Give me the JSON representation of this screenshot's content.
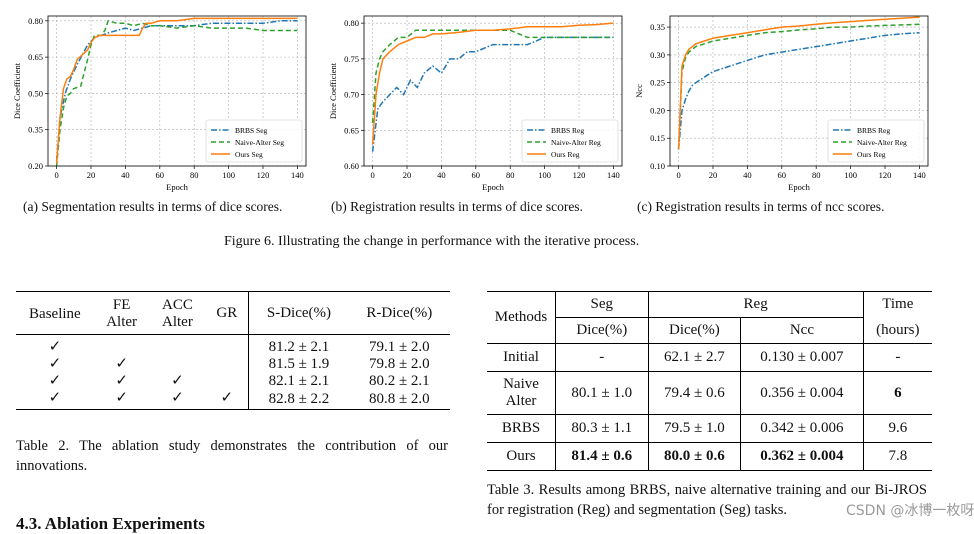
{
  "chart_data": [
    {
      "type": "line",
      "title": "",
      "xlabel": "Epoch",
      "ylabel": "Dice Coefficient",
      "xlim": [
        -5,
        145
      ],
      "ylim": [
        0.2,
        0.82
      ],
      "xticks": [
        0,
        20,
        40,
        60,
        80,
        100,
        120,
        140
      ],
      "yticks": [
        0.2,
        0.35,
        0.5,
        0.65,
        0.8
      ],
      "ytick_labels": [
        "0.20",
        "0.35",
        "0.50",
        "0.65",
        "0.80"
      ],
      "grid": true,
      "legend": "bottom-right",
      "series": [
        {
          "name": "BRBS Seg",
          "style": "dashdot",
          "color": "#1f77b4",
          "x": [
            0,
            2,
            5,
            8,
            12,
            15,
            18,
            22,
            26,
            30,
            35,
            40,
            45,
            50,
            55,
            60,
            70,
            80,
            90,
            100,
            110,
            120,
            130,
            140
          ],
          "y": [
            0.22,
            0.4,
            0.5,
            0.56,
            0.62,
            0.66,
            0.7,
            0.73,
            0.74,
            0.75,
            0.76,
            0.77,
            0.76,
            0.77,
            0.78,
            0.78,
            0.78,
            0.78,
            0.79,
            0.79,
            0.79,
            0.79,
            0.8,
            0.8
          ]
        },
        {
          "name": "Naive-Alter Seg",
          "style": "dashed",
          "color": "#2ca02c",
          "x": [
            0,
            2,
            4,
            6,
            8,
            10,
            14,
            18,
            20,
            22,
            26,
            28,
            30,
            35,
            40,
            45,
            50,
            55,
            60,
            70,
            80,
            90,
            100,
            110,
            120,
            130,
            140
          ],
          "y": [
            0.2,
            0.35,
            0.44,
            0.49,
            0.5,
            0.52,
            0.53,
            0.64,
            0.7,
            0.74,
            0.74,
            0.76,
            0.8,
            0.79,
            0.79,
            0.78,
            0.79,
            0.78,
            0.78,
            0.77,
            0.78,
            0.77,
            0.77,
            0.77,
            0.76,
            0.76,
            0.76
          ]
        },
        {
          "name": "Ours Seg",
          "style": "solid",
          "color": "#ff7f0e",
          "x": [
            0,
            2,
            4,
            6,
            8,
            10,
            12,
            15,
            18,
            20,
            22,
            25,
            28,
            30,
            35,
            40,
            45,
            48,
            50,
            52,
            55,
            60,
            70,
            80,
            90,
            100,
            110,
            120,
            130,
            140
          ],
          "y": [
            0.21,
            0.4,
            0.52,
            0.56,
            0.57,
            0.6,
            0.64,
            0.66,
            0.68,
            0.71,
            0.73,
            0.74,
            0.74,
            0.74,
            0.74,
            0.74,
            0.74,
            0.74,
            0.77,
            0.79,
            0.79,
            0.8,
            0.8,
            0.81,
            0.81,
            0.81,
            0.81,
            0.81,
            0.81,
            0.81
          ]
        }
      ]
    },
    {
      "type": "line",
      "title": "",
      "xlabel": "Epoch",
      "ylabel": "Dice Coefficient",
      "xlim": [
        -5,
        145
      ],
      "ylim": [
        0.6,
        0.81
      ],
      "xticks": [
        0,
        20,
        40,
        60,
        80,
        100,
        120,
        140
      ],
      "yticks": [
        0.6,
        0.65,
        0.7,
        0.75,
        0.8
      ],
      "ytick_labels": [
        "0.60",
        "0.65",
        "0.70",
        "0.75",
        "0.80"
      ],
      "grid": true,
      "legend": "bottom-right",
      "series": [
        {
          "name": "BRBS Reg",
          "style": "dashdot",
          "color": "#1f77b4",
          "x": [
            0,
            3,
            6,
            10,
            14,
            18,
            22,
            26,
            30,
            35,
            40,
            45,
            50,
            55,
            60,
            70,
            80,
            90,
            100,
            110,
            120,
            130,
            140
          ],
          "y": [
            0.62,
            0.68,
            0.69,
            0.7,
            0.71,
            0.7,
            0.72,
            0.71,
            0.73,
            0.74,
            0.73,
            0.75,
            0.75,
            0.76,
            0.76,
            0.77,
            0.77,
            0.77,
            0.78,
            0.78,
            0.78,
            0.78,
            0.78
          ]
        },
        {
          "name": "Naive-Alter Reg",
          "style": "dashed",
          "color": "#2ca02c",
          "x": [
            0,
            2,
            4,
            6,
            10,
            15,
            20,
            25,
            30,
            35,
            40,
            45,
            50,
            55,
            60,
            70,
            80,
            90,
            100,
            110,
            120,
            130,
            140
          ],
          "y": [
            0.66,
            0.73,
            0.75,
            0.76,
            0.77,
            0.78,
            0.78,
            0.79,
            0.79,
            0.79,
            0.79,
            0.79,
            0.79,
            0.79,
            0.79,
            0.79,
            0.79,
            0.78,
            0.78,
            0.78,
            0.78,
            0.78,
            0.78
          ]
        },
        {
          "name": "Ours Reg",
          "style": "solid",
          "color": "#ff7f0e",
          "x": [
            0,
            2,
            4,
            6,
            10,
            15,
            20,
            25,
            30,
            35,
            40,
            50,
            60,
            70,
            80,
            90,
            100,
            110,
            120,
            130,
            140
          ],
          "y": [
            0.63,
            0.7,
            0.73,
            0.75,
            0.76,
            0.77,
            0.775,
            0.78,
            0.78,
            0.785,
            0.785,
            0.787,
            0.79,
            0.79,
            0.792,
            0.795,
            0.795,
            0.795,
            0.797,
            0.798,
            0.8
          ]
        }
      ]
    },
    {
      "type": "line",
      "title": "",
      "xlabel": "Epoch",
      "ylabel": "Ncc",
      "xlim": [
        -5,
        145
      ],
      "ylim": [
        0.1,
        0.37
      ],
      "xticks": [
        0,
        20,
        40,
        60,
        80,
        100,
        120,
        140
      ],
      "yticks": [
        0.1,
        0.15,
        0.2,
        0.25,
        0.3,
        0.35
      ],
      "ytick_labels": [
        "0.10",
        "0.15",
        "0.20",
        "0.25",
        "0.30",
        "0.35"
      ],
      "grid": true,
      "legend": "bottom-right",
      "series": [
        {
          "name": "BRBS Reg",
          "style": "dashdot",
          "color": "#1f77b4",
          "x": [
            0,
            2,
            4,
            6,
            8,
            10,
            15,
            20,
            30,
            40,
            50,
            60,
            70,
            80,
            90,
            100,
            110,
            120,
            130,
            140
          ],
          "y": [
            0.13,
            0.2,
            0.22,
            0.235,
            0.245,
            0.25,
            0.26,
            0.27,
            0.28,
            0.29,
            0.3,
            0.305,
            0.31,
            0.315,
            0.32,
            0.325,
            0.33,
            0.335,
            0.338,
            0.34
          ]
        },
        {
          "name": "Naive-Alter Reg",
          "style": "dashed",
          "color": "#2ca02c",
          "x": [
            0,
            2,
            4,
            6,
            8,
            10,
            15,
            20,
            30,
            40,
            50,
            60,
            70,
            80,
            90,
            100,
            110,
            120,
            130,
            140
          ],
          "y": [
            0.13,
            0.27,
            0.295,
            0.305,
            0.31,
            0.315,
            0.32,
            0.325,
            0.33,
            0.335,
            0.34,
            0.342,
            0.345,
            0.347,
            0.35,
            0.35,
            0.352,
            0.353,
            0.354,
            0.355
          ]
        },
        {
          "name": "Ours Reg",
          "style": "solid",
          "color": "#ff7f0e",
          "x": [
            0,
            2,
            4,
            6,
            8,
            10,
            15,
            20,
            30,
            40,
            50,
            60,
            70,
            80,
            90,
            100,
            110,
            120,
            130,
            140
          ],
          "y": [
            0.13,
            0.28,
            0.3,
            0.31,
            0.315,
            0.32,
            0.325,
            0.33,
            0.335,
            0.34,
            0.345,
            0.35,
            0.352,
            0.355,
            0.358,
            0.36,
            0.362,
            0.364,
            0.366,
            0.368
          ]
        }
      ]
    }
  ],
  "captions": {
    "a": "(a) Segmentation results in terms of dice scores.",
    "b": "(b) Registration results in terms of dice scores.",
    "c": "(c) Registration results in terms of ncc scores.",
    "figure": "Figure 6. Illustrating the change in performance with the iterative process."
  },
  "table2": {
    "headers": [
      [
        "Baseline"
      ],
      [
        "FE",
        "Alter"
      ],
      [
        "ACC",
        "Alter"
      ],
      [
        "GR"
      ],
      [
        "S-Dice(%)"
      ],
      [
        "R-Dice(%)"
      ]
    ],
    "check": "✓",
    "rows": [
      {
        "checks": [
          true,
          false,
          false,
          false
        ],
        "s_dice": "81.2 ± 2.1",
        "r_dice": "79.1 ± 2.0"
      },
      {
        "checks": [
          true,
          true,
          false,
          false
        ],
        "s_dice": "81.5 ± 1.9",
        "r_dice": "79.8 ± 2.0"
      },
      {
        "checks": [
          true,
          true,
          true,
          false
        ],
        "s_dice": "82.1 ± 2.1",
        "r_dice": "80.2 ± 2.1"
      },
      {
        "checks": [
          true,
          true,
          true,
          true
        ],
        "s_dice": "82.8 ± 2.2",
        "r_dice": "80.8 ± 2.0"
      }
    ],
    "caption": "Table 2.  The ablation study demonstrates the contribution of our innovations."
  },
  "table3": {
    "h_methods": "Methods",
    "h_seg": "Seg",
    "h_reg": "Reg",
    "h_time": "Time",
    "h_seg_dice": "Dice(%)",
    "h_reg_dice": "Dice(%)",
    "h_ncc": "Ncc",
    "h_hours": "(hours)",
    "rows": [
      {
        "method": "Initial",
        "seg_dice": "-",
        "reg_dice": "62.1 ± 2.7",
        "ncc": "0.130 ± 0.007",
        "time": "-"
      },
      {
        "method": "Naive Alter",
        "seg_dice": "80.1 ± 1.0",
        "reg_dice": "79.4 ± 0.6",
        "ncc": "0.356 ± 0.004",
        "time": "6"
      },
      {
        "method": "BRBS",
        "seg_dice": "80.3 ± 1.1",
        "reg_dice": "79.5 ± 1.0",
        "ncc": "0.342 ± 0.006",
        "time": "9.6"
      },
      {
        "method": "Ours",
        "seg_dice": "81.4 ± 0.6",
        "reg_dice": "80.0 ± 0.6",
        "ncc": "0.362 ± 0.004",
        "time": "7.8"
      }
    ],
    "caption": "Table 3.  Results among BRBS, naive alternative training and our Bi-JROS for registration (Reg) and segmentation (Seg) tasks."
  },
  "section_heading": "4.3. Ablation Experiments",
  "watermark": "CSDN @冰博一枚呀"
}
